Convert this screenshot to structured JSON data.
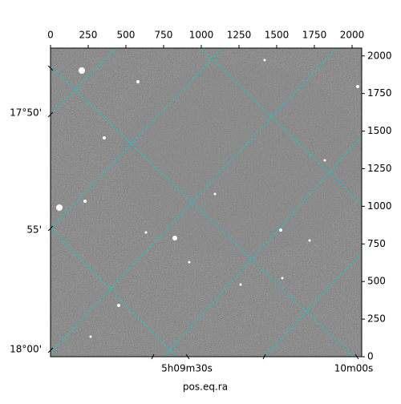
{
  "chart_data": {
    "type": "image",
    "xlabel": "pos.eq.ra",
    "xlim": [
      0,
      2064
    ],
    "xticks": [
      0,
      250,
      500,
      750,
      1000,
      1250,
      1500,
      1750,
      2000
    ],
    "ylim": [
      0,
      2052
    ],
    "yticks": [
      0,
      250,
      500,
      750,
      1000,
      1250,
      1500,
      1750,
      2000
    ],
    "dec_ticks": [
      "17°50'",
      "55'",
      "18°00'"
    ],
    "ra_ticks": [
      "5h09m30s",
      "10m00s"
    ],
    "grid": true,
    "grid_color": "#00d0d0"
  }
}
